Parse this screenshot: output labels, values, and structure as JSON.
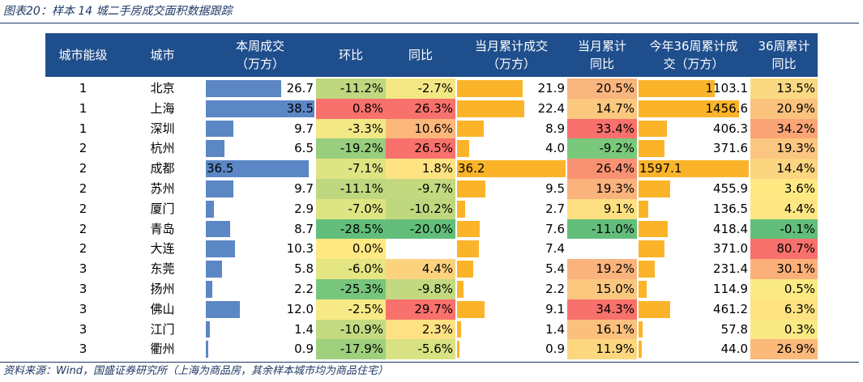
{
  "caption": "图表20：样本 14 城二手房成交面积数据跟踪",
  "source": "资料来源：Wind，国盛证券研究所（上海为商品房，其余样本城市均为商品住宅）",
  "headers": [
    "城市能级",
    "城市",
    "本周成交\n（万方）",
    "环比",
    "同比",
    "当月累计成交\n（万方）",
    "当月累计\n同比",
    "今年36周累计成\n交（万方）",
    "36周累计\n同比"
  ],
  "colors": {
    "header_bg": "#1f4e8c",
    "bar_blue": "#5b87c5",
    "bar_gold": "#fbb42a",
    "text_dark_blue": "#1f3864"
  },
  "rows": [
    {
      "tier": "1",
      "city": "北京",
      "weekly": "26.7",
      "weekly_value": 26.7,
      "wow": "-11.2%",
      "yoy": "-2.7%",
      "month_cum": "21.9",
      "month_cum_value": 21.9,
      "month_yoy": "20.5%",
      "ytd": "1103.1",
      "ytd_value": 1103.1,
      "ytd_yoy": "13.5%",
      "c_wow": "#bfd87f",
      "c_yoy": "#f3e784",
      "c_month_yoy": "#f9b57e",
      "c_ytd_yoy": "#fbd882"
    },
    {
      "tier": "1",
      "city": "上海",
      "weekly": "38.5",
      "weekly_value": 38.5,
      "wow": "0.8%",
      "yoy": "26.3%",
      "month_cum": "22.4",
      "month_cum_value": 22.4,
      "month_yoy": "14.7%",
      "ytd": "1456.6",
      "ytd_value": 1456.6,
      "ytd_yoy": "20.9%",
      "c_wow": "#f8716c",
      "c_yoy": "#f8716c",
      "c_month_yoy": "#fbc87f",
      "c_ytd_yoy": "#fbc27e"
    },
    {
      "tier": "1",
      "city": "深圳",
      "weekly": "9.7",
      "weekly_value": 9.7,
      "wow": "-3.3%",
      "yoy": "10.6%",
      "month_cum": "8.9",
      "month_cum_value": 8.9,
      "month_yoy": "33.4%",
      "ytd": "406.3",
      "ytd_value": 406.3,
      "ytd_yoy": "34.2%",
      "c_wow": "#f2e886",
      "c_yoy": "#fcb77b",
      "c_month_yoy": "#f8716c",
      "c_ytd_yoy": "#fba576"
    },
    {
      "tier": "2",
      "city": "杭州",
      "weekly": "6.5",
      "weekly_value": 6.5,
      "wow": "-19.2%",
      "yoy": "26.5%",
      "month_cum": "4.0",
      "month_cum_value": 4.0,
      "month_yoy": "-9.2%",
      "ytd": "371.6",
      "ytd_value": 371.6,
      "ytd_yoy": "19.3%",
      "c_wow": "#98ce7e",
      "c_yoy": "#f8716c",
      "c_month_yoy": "#7ac87c",
      "c_ytd_yoy": "#fbc67f"
    },
    {
      "tier": "2",
      "city": "成都",
      "weekly": "36.5",
      "weekly_value": 36.5,
      "wow": "-7.1%",
      "yoy": "1.8%",
      "month_cum": "36.2",
      "month_cum_value": 36.2,
      "month_yoy": "26.4%",
      "ytd": "1597.1",
      "ytd_value": 1597.1,
      "ytd_yoy": "14.4%",
      "c_wow": "#dde482",
      "c_yoy": "#fde382",
      "c_month_yoy": "#f99273",
      "c_ytd_yoy": "#fcd580"
    },
    {
      "tier": "2",
      "city": "苏州",
      "weekly": "9.7",
      "weekly_value": 9.7,
      "wow": "-11.1%",
      "yoy": "-9.7%",
      "month_cum": "9.5",
      "month_cum_value": 9.5,
      "month_yoy": "19.3%",
      "ytd": "455.9",
      "ytd_value": 455.9,
      "ytd_yoy": "3.6%",
      "c_wow": "#bfd87f",
      "c_yoy": "#c3d980",
      "c_month_yoy": "#fab37c",
      "c_ytd_yoy": "#fee983"
    },
    {
      "tier": "2",
      "city": "厦门",
      "weekly": "2.9",
      "weekly_value": 2.9,
      "wow": "-7.0%",
      "yoy": "-10.2%",
      "month_cum": "2.7",
      "month_cum_value": 2.7,
      "month_yoy": "9.1%",
      "ytd": "136.5",
      "ytd_value": 136.5,
      "ytd_yoy": "4.4%",
      "c_wow": "#dde482",
      "c_yoy": "#bfd87f",
      "c_month_yoy": "#fde082",
      "c_ytd_yoy": "#fee783"
    },
    {
      "tier": "2",
      "city": "青岛",
      "weekly": "8.7",
      "weekly_value": 8.7,
      "wow": "-28.5%",
      "yoy": "-20.0%",
      "month_cum": "7.6",
      "month_cum_value": 7.6,
      "month_yoy": "-11.0%",
      "ytd": "418.4",
      "ytd_value": 418.4,
      "ytd_yoy": "-0.1%",
      "c_wow": "#63be7b",
      "c_yoy": "#63be7b",
      "c_month_yoy": "#63be7b",
      "c_ytd_yoy": "#63be7b"
    },
    {
      "tier": "2",
      "city": "大连",
      "weekly": "10.3",
      "weekly_value": 10.3,
      "wow": "0.0%",
      "yoy": "",
      "month_cum": "7.4",
      "month_cum_value": 7.4,
      "month_yoy": "",
      "ytd": "371.0",
      "ytd_value": 371.0,
      "ytd_yoy": "80.7%",
      "c_wow": "#fee983",
      "c_yoy": "#ffffff",
      "c_month_yoy": "#ffffff",
      "c_ytd_yoy": "#f8716c"
    },
    {
      "tier": "3",
      "city": "东莞",
      "weekly": "5.8",
      "weekly_value": 5.8,
      "wow": "-6.0%",
      "yoy": "4.4%",
      "month_cum": "5.4",
      "month_cum_value": 5.4,
      "month_yoy": "19.2%",
      "ytd": "231.4",
      "ytd_value": 231.4,
      "ytd_yoy": "30.1%",
      "c_wow": "#e4e683",
      "c_yoy": "#fdd27f",
      "c_month_yoy": "#fab37c",
      "c_ytd_yoy": "#fbaf79"
    },
    {
      "tier": "3",
      "city": "扬州",
      "weekly": "2.2",
      "weekly_value": 2.2,
      "wow": "-25.3%",
      "yoy": "-9.8%",
      "month_cum": "2.2",
      "month_cum_value": 2.2,
      "month_yoy": "15.0%",
      "ytd": "114.9",
      "ytd_value": 114.9,
      "ytd_yoy": "0.5%",
      "c_wow": "#78c67d",
      "c_yoy": "#c3d980",
      "c_month_yoy": "#fbc77f",
      "c_ytd_yoy": "#fbea84"
    },
    {
      "tier": "3",
      "city": "佛山",
      "weekly": "12.0",
      "weekly_value": 12.0,
      "wow": "-2.5%",
      "yoy": "29.7%",
      "month_cum": "9.1",
      "month_cum_value": 9.1,
      "month_yoy": "34.3%",
      "ytd": "461.2",
      "ytd_value": 461.2,
      "ytd_yoy": "6.3%",
      "c_wow": "#f7e985",
      "c_yoy": "#f8716c",
      "c_month_yoy": "#f8716c",
      "c_ytd_yoy": "#fee282"
    },
    {
      "tier": "3",
      "city": "江门",
      "weekly": "1.4",
      "weekly_value": 1.4,
      "wow": "-10.9%",
      "yoy": "2.3%",
      "month_cum": "1.4",
      "month_cum_value": 1.4,
      "month_yoy": "16.1%",
      "ytd": "57.8",
      "ytd_value": 57.8,
      "ytd_yoy": "0.3%",
      "c_wow": "#c4da80",
      "c_yoy": "#fee182",
      "c_month_yoy": "#fbc07e",
      "c_ytd_yoy": "#f9e984"
    },
    {
      "tier": "3",
      "city": "衢州",
      "weekly": "0.9",
      "weekly_value": 0.9,
      "wow": "-17.9%",
      "yoy": "-5.6%",
      "month_cum": "0.9",
      "month_cum_value": 0.9,
      "month_yoy": "11.9%",
      "ytd": "44.0",
      "ytd_value": 44.0,
      "ytd_yoy": "26.9%",
      "c_wow": "#9fd07e",
      "c_yoy": "#d9e282",
      "c_month_yoy": "#fcd780",
      "c_ytd_yoy": "#fbb97a"
    }
  ]
}
